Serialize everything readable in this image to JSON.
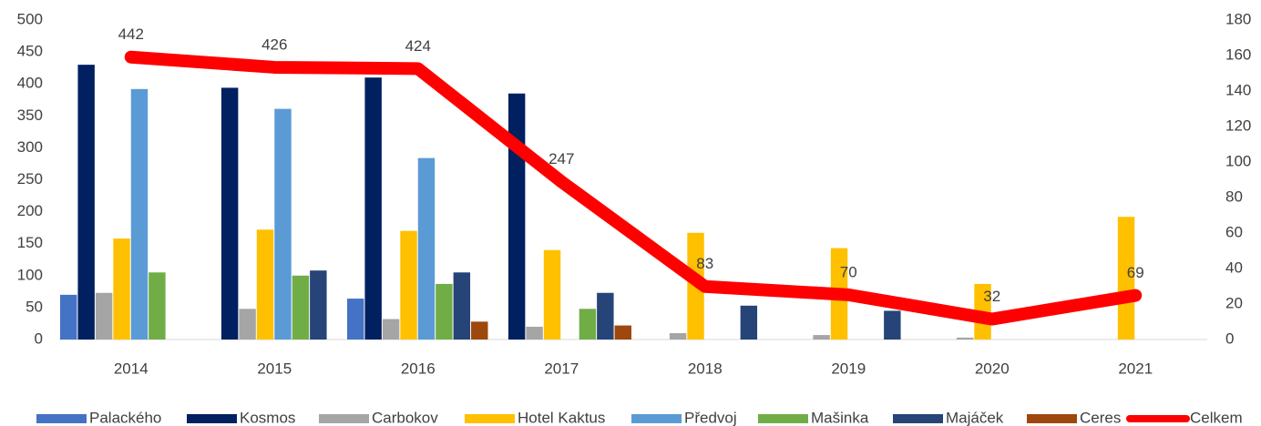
{
  "chart_data": {
    "type": "bar",
    "categories": [
      "2014",
      "2015",
      "2016",
      "2017",
      "2018",
      "2019",
      "2020",
      "2021"
    ],
    "series": [
      {
        "name": "Palackého",
        "color": "#4472c4",
        "values": [
          70,
          null,
          64,
          null,
          null,
          null,
          null,
          null
        ]
      },
      {
        "name": "Kosmos",
        "color": "#002060",
        "values": [
          430,
          394,
          410,
          385,
          null,
          null,
          null,
          null
        ]
      },
      {
        "name": "Carbokov",
        "color": "#a5a5a5",
        "values": [
          73,
          48,
          32,
          20,
          10,
          7,
          3,
          null
        ]
      },
      {
        "name": "Hotel Kaktus",
        "color": "#ffc000",
        "values": [
          158,
          172,
          170,
          140,
          167,
          143,
          87,
          192
        ]
      },
      {
        "name": "Předvoj",
        "color": "#5b9bd5",
        "values": [
          392,
          361,
          284,
          null,
          null,
          null,
          null,
          null
        ]
      },
      {
        "name": "Mašinka",
        "color": "#70ad47",
        "values": [
          105,
          100,
          87,
          48,
          null,
          null,
          null,
          null
        ]
      },
      {
        "name": "Majáček",
        "color": "#264478",
        "values": [
          null,
          108,
          105,
          73,
          53,
          45,
          null,
          null
        ]
      },
      {
        "name": "Ceres",
        "color": "#9e480e",
        "values": [
          null,
          null,
          28,
          22,
          null,
          null,
          null,
          null
        ]
      },
      {
        "name": "Celkem",
        "color": "#ff0000",
        "type": "line",
        "values": [
          442,
          426,
          424,
          247,
          83,
          70,
          32,
          69
        ]
      }
    ],
    "ylim": [
      0,
      500
    ],
    "yticks": [
      0,
      50,
      100,
      150,
      200,
      250,
      300,
      350,
      400,
      450,
      500
    ],
    "y2lim": [
      0,
      180
    ],
    "y2ticks": [
      0,
      20,
      40,
      60,
      80,
      100,
      120,
      140,
      160,
      180
    ],
    "legend": "bottom"
  }
}
